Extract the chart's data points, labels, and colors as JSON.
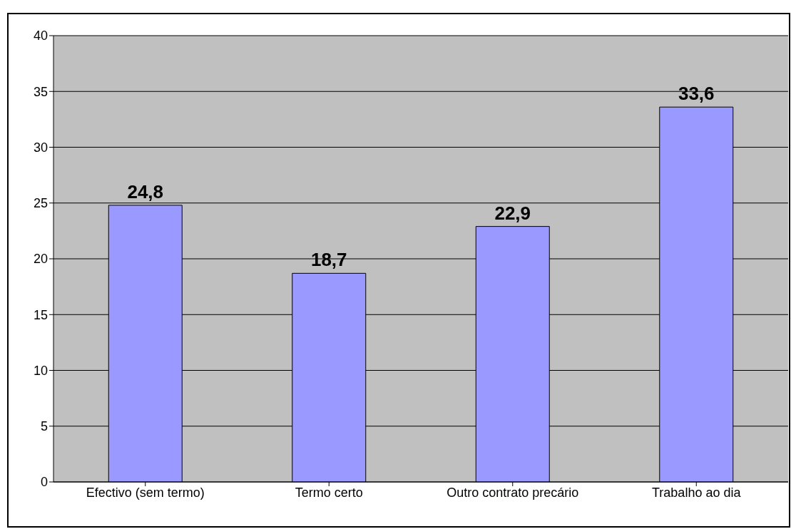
{
  "chart_data": {
    "type": "bar",
    "categories": [
      "Efectivo (sem termo)",
      "Termo certo",
      "Outro contrato precário",
      "Trabalho ao dia"
    ],
    "values": [
      24.8,
      18.7,
      22.9,
      33.6
    ],
    "color": "#9999ff",
    "value_labels": [
      "24,8",
      "18,7",
      "22,9",
      "33,6"
    ],
    "ylim": [
      0,
      40
    ],
    "yticks": [
      0,
      5,
      10,
      15,
      20,
      25,
      30,
      35,
      40
    ],
    "grid": "y"
  }
}
